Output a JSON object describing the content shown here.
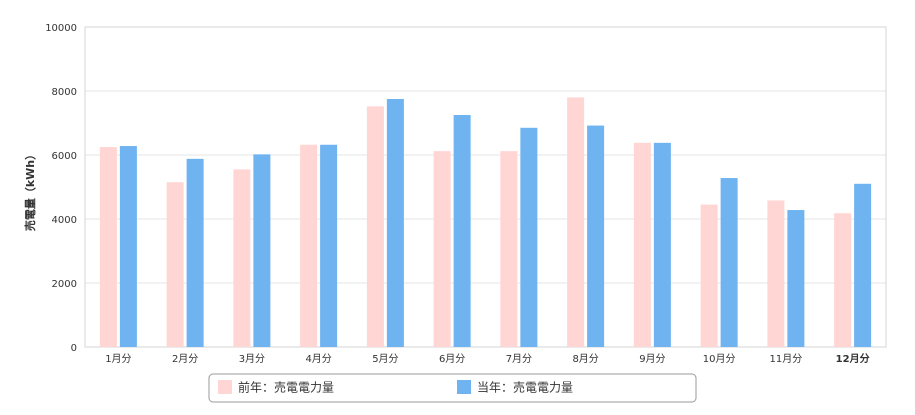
{
  "chart_data": {
    "type": "bar",
    "title": "",
    "xlabel": "",
    "ylabel": "売電量（kWh）",
    "ylim": [
      0,
      10000
    ],
    "yticks": [
      0,
      2000,
      4000,
      6000,
      8000,
      10000
    ],
    "grid": true,
    "legend_position": "bottom",
    "categories": [
      "1月分",
      "2月分",
      "3月分",
      "4月分",
      "5月分",
      "6月分",
      "7月分",
      "8月分",
      "9月分",
      "10月分",
      "11月分",
      "12月分"
    ],
    "highlight_category": "12月分",
    "series": [
      {
        "name": "前年：売電電力量",
        "color": "#ffd6d3",
        "values": [
          6250,
          5150,
          5550,
          6320,
          7520,
          6120,
          6120,
          7800,
          6380,
          4450,
          4580,
          4180
        ]
      },
      {
        "name": "当年：売電電力量",
        "color": "#6fb3f0",
        "values": [
          6280,
          5880,
          6020,
          6320,
          7750,
          7250,
          6850,
          6920,
          6380,
          5280,
          4280,
          5100
        ]
      }
    ]
  }
}
